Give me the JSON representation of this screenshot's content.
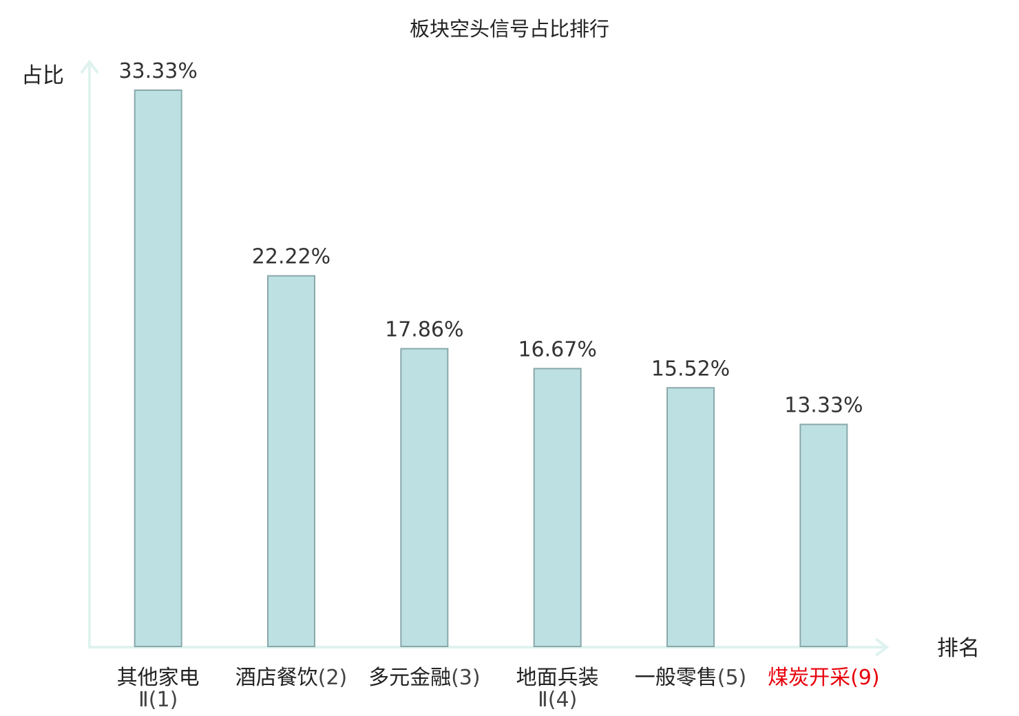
{
  "chart_data": {
    "type": "bar",
    "title": "板块空头信号占比排行",
    "xlabel": "排名",
    "ylabel": "占比",
    "ylim": [
      0,
      35
    ],
    "grid": false,
    "categories": [
      {
        "name": "其他家电",
        "rank": "Ⅱ(1)",
        "wrap": true,
        "highlight": false
      },
      {
        "name": "酒店餐饮",
        "rank": "(2)",
        "wrap": false,
        "highlight": false
      },
      {
        "name": "多元金融",
        "rank": "(3)",
        "wrap": false,
        "highlight": false
      },
      {
        "name": "地面兵装",
        "rank": "Ⅱ(4)",
        "wrap": true,
        "highlight": false
      },
      {
        "name": "一般零售",
        "rank": "(5)",
        "wrap": false,
        "highlight": false
      },
      {
        "name": "煤炭开采",
        "rank": "(9)",
        "wrap": false,
        "highlight": true
      }
    ],
    "values": [
      33.33,
      22.22,
      17.86,
      16.67,
      15.52,
      13.33
    ],
    "value_labels": [
      "33.33%",
      "22.22%",
      "17.86%",
      "16.67%",
      "15.52%",
      "13.33%"
    ],
    "colors": {
      "bar_fill": "#bde0e3",
      "bar_stroke": "#89a8aa",
      "axis": "#dff2ef",
      "text": "#222222",
      "rank_text": "#444444",
      "highlight": "#e8000b"
    }
  }
}
